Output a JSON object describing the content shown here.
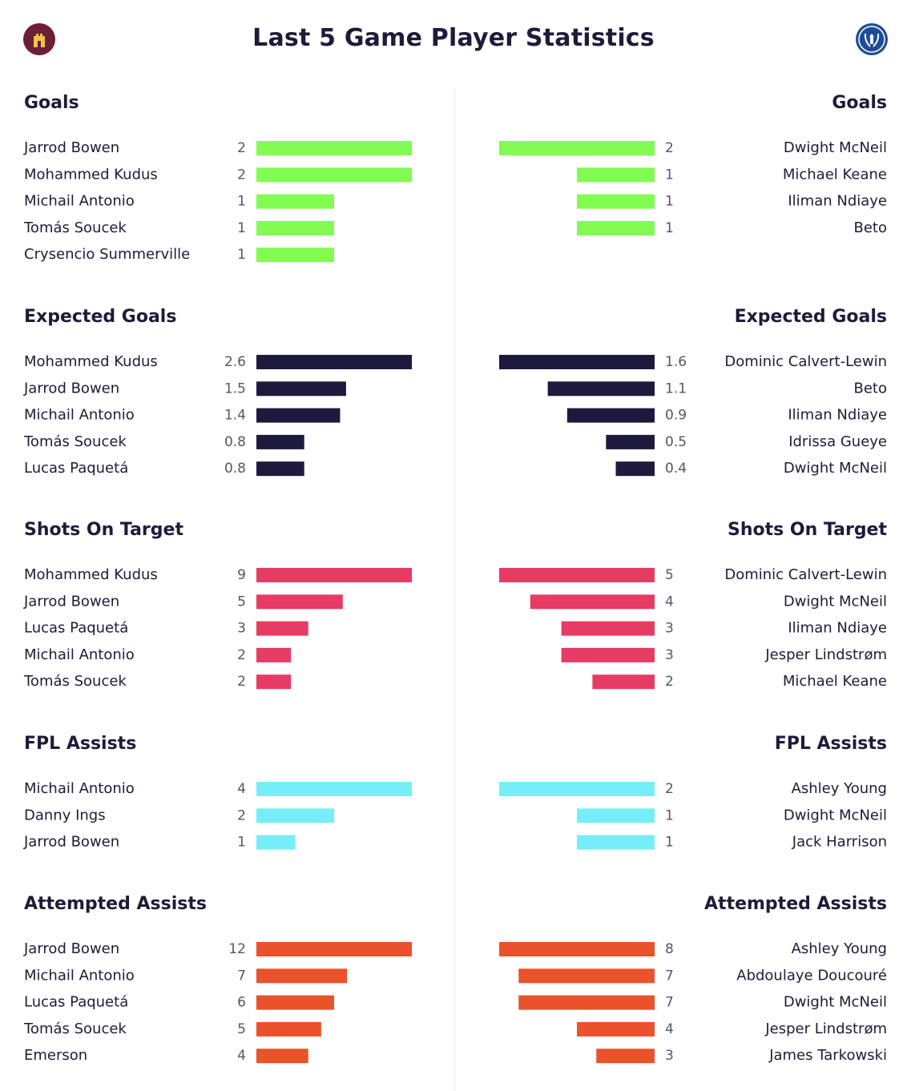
{
  "title": "Last 5 Game Player Statistics",
  "colors": {
    "goals": "#82fb52",
    "expected_goals": "#1e1a3d",
    "shots_on_target": "#e63c63",
    "fpl_assists": "#76eefa",
    "attempted_assists": "#e9522b"
  },
  "chart_data": {
    "type": "bar",
    "sections": [
      {
        "key": "goals",
        "title": "Goals",
        "left": [
          {
            "name": "Jarrod Bowen",
            "value": 2,
            "label": "2"
          },
          {
            "name": "Mohammed Kudus",
            "value": 2,
            "label": "2"
          },
          {
            "name": "Michail Antonio",
            "value": 1,
            "label": "1"
          },
          {
            "name": "Tomás Soucek",
            "value": 1,
            "label": "1"
          },
          {
            "name": "Crysencio Summerville",
            "value": 1,
            "label": "1"
          }
        ],
        "right": [
          {
            "name": "Dwight McNeil",
            "value": 2,
            "label": "2"
          },
          {
            "name": "Michael Keane",
            "value": 1,
            "label": "1"
          },
          {
            "name": "Iliman Ndiaye",
            "value": 1,
            "label": "1"
          },
          {
            "name": "Beto",
            "value": 1,
            "label": "1"
          }
        ]
      },
      {
        "key": "expected_goals",
        "title": "Expected Goals",
        "left": [
          {
            "name": "Mohammed Kudus",
            "value": 2.6,
            "label": "2.6"
          },
          {
            "name": "Jarrod Bowen",
            "value": 1.5,
            "label": "1.5"
          },
          {
            "name": "Michail Antonio",
            "value": 1.4,
            "label": "1.4"
          },
          {
            "name": "Tomás Soucek",
            "value": 0.8,
            "label": "0.8"
          },
          {
            "name": "Lucas Paquetá",
            "value": 0.8,
            "label": "0.8"
          }
        ],
        "right": [
          {
            "name": "Dominic Calvert-Lewin",
            "value": 1.6,
            "label": "1.6"
          },
          {
            "name": "Beto",
            "value": 1.1,
            "label": "1.1"
          },
          {
            "name": "Iliman Ndiaye",
            "value": 0.9,
            "label": "0.9"
          },
          {
            "name": "Idrissa Gueye",
            "value": 0.5,
            "label": "0.5"
          },
          {
            "name": "Dwight McNeil",
            "value": 0.4,
            "label": "0.4"
          }
        ]
      },
      {
        "key": "shots_on_target",
        "title": "Shots On Target",
        "left": [
          {
            "name": "Mohammed Kudus",
            "value": 9,
            "label": "9"
          },
          {
            "name": "Jarrod Bowen",
            "value": 5,
            "label": "5"
          },
          {
            "name": "Lucas Paquetá",
            "value": 3,
            "label": "3"
          },
          {
            "name": "Michail Antonio",
            "value": 2,
            "label": "2"
          },
          {
            "name": "Tomás Soucek",
            "value": 2,
            "label": "2"
          }
        ],
        "right": [
          {
            "name": "Dominic Calvert-Lewin",
            "value": 5,
            "label": "5"
          },
          {
            "name": "Dwight McNeil",
            "value": 4,
            "label": "4"
          },
          {
            "name": "Iliman Ndiaye",
            "value": 3,
            "label": "3"
          },
          {
            "name": "Jesper Lindstrøm",
            "value": 3,
            "label": "3"
          },
          {
            "name": "Michael Keane",
            "value": 2,
            "label": "2"
          }
        ]
      },
      {
        "key": "fpl_assists",
        "title": "FPL Assists",
        "left": [
          {
            "name": "Michail Antonio",
            "value": 4,
            "label": "4"
          },
          {
            "name": "Danny Ings",
            "value": 2,
            "label": "2"
          },
          {
            "name": "Jarrod Bowen",
            "value": 1,
            "label": "1"
          }
        ],
        "right": [
          {
            "name": "Ashley Young",
            "value": 2,
            "label": "2"
          },
          {
            "name": "Dwight McNeil",
            "value": 1,
            "label": "1"
          },
          {
            "name": "Jack Harrison",
            "value": 1,
            "label": "1"
          }
        ]
      },
      {
        "key": "attempted_assists",
        "title": "Attempted Assists",
        "left": [
          {
            "name": "Jarrod Bowen",
            "value": 12,
            "label": "12"
          },
          {
            "name": "Michail Antonio",
            "value": 7,
            "label": "7"
          },
          {
            "name": "Lucas Paquetá",
            "value": 6,
            "label": "6"
          },
          {
            "name": "Tomás Soucek",
            "value": 5,
            "label": "5"
          },
          {
            "name": "Emerson",
            "value": 4,
            "label": "4"
          }
        ],
        "right": [
          {
            "name": "Ashley Young",
            "value": 8,
            "label": "8"
          },
          {
            "name": "Abdoulaye Doucouré",
            "value": 7,
            "label": "7"
          },
          {
            "name": "Dwight McNeil",
            "value": 7,
            "label": "7"
          },
          {
            "name": "Jesper Lindstrøm",
            "value": 4,
            "label": "4"
          },
          {
            "name": "James Tarkowski",
            "value": 3,
            "label": "3"
          }
        ]
      }
    ]
  }
}
